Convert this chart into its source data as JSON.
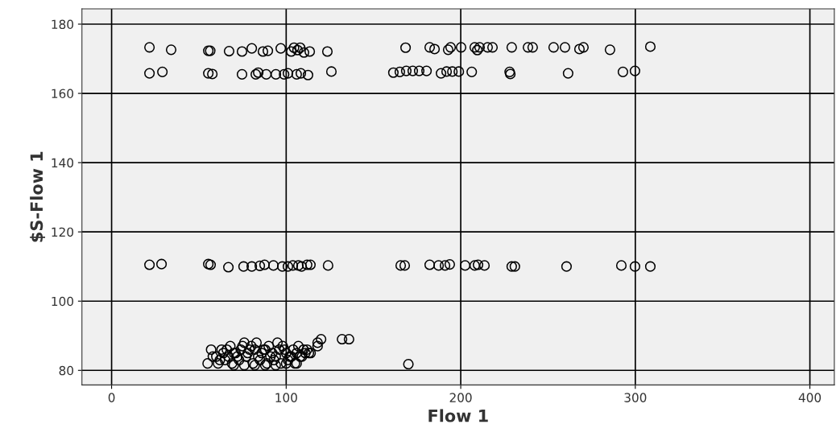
{
  "chart_data": {
    "type": "scatter",
    "xlabel": "Flow 1",
    "ylabel": "$S-Flow 1",
    "xlim": [
      -17,
      414
    ],
    "ylim": [
      75.8,
      184.4
    ],
    "xticks": [
      0,
      100,
      200,
      300,
      400
    ],
    "yticks": [
      80,
      100,
      120,
      140,
      160,
      180
    ],
    "grid": true,
    "marker": "circle",
    "series": [
      {
        "color": "#000000",
        "x": [
          21.7,
          34.1,
          55.4,
          56.5,
          67.3,
          74.7,
          80.3,
          86.7,
          89.5,
          96.9,
          102.9,
          104.5,
          106.5,
          108,
          110.2,
          113.5,
          123.6,
          168.4,
          182.2,
          185,
          192.8,
          194.2,
          200.2,
          208,
          209.5,
          210.8,
          215.4,
          218.2,
          229.2,
          238.5,
          241.2,
          253.2,
          259.7,
          268,
          270.3,
          285.5,
          308.6
        ],
        "values": [
          173.3,
          172.6,
          172.3,
          172.3,
          172.2,
          172.1,
          173,
          172.1,
          172.3,
          173,
          172.1,
          173.2,
          172.5,
          173.2,
          171.8,
          172.1,
          172.1,
          173.2,
          173.3,
          172.8,
          172.6,
          173.3,
          173.3,
          173.3,
          172.5,
          173.3,
          173.3,
          173.3,
          173.3,
          173.3,
          173.3,
          173.3,
          173.3,
          172.8,
          173.3,
          172.6,
          173.5
        ]
      },
      {
        "color": "#000000",
        "x": [
          21.7,
          29.1,
          55.4,
          57.7,
          74.7,
          82.6,
          84,
          88.6,
          94.1,
          98.8,
          101,
          106,
          108.4,
          112.5,
          125.9,
          161.4,
          165.1,
          168.8,
          172.5,
          176.2,
          180.4,
          188.7,
          191.9,
          195.2,
          198.9,
          206.3,
          228,
          228.4,
          261.5,
          292.9,
          299.8
        ],
        "values": [
          165.8,
          166.2,
          165.8,
          165.6,
          165.5,
          165.5,
          166,
          165.5,
          165.5,
          165.5,
          165.8,
          165.5,
          165.8,
          165.3,
          166.3,
          166,
          166.2,
          166.5,
          166.5,
          166.5,
          166.5,
          165.8,
          166.3,
          166.3,
          166.3,
          166.2,
          166.2,
          165.6,
          165.8,
          166.2,
          166.5
        ]
      },
      {
        "color": "#000000",
        "x": [
          21.7,
          28.6,
          55.4,
          56.7,
          66.9,
          75.6,
          80.3,
          84.9,
          87.6,
          92.7,
          97.8,
          101,
          103.8,
          107,
          108.8,
          112,
          113.9,
          124,
          165.6,
          167.9,
          182.2,
          187.3,
          191,
          193.7,
          202.5,
          208,
          209.9,
          213.6,
          229.2,
          231,
          260.6,
          292,
          299.8,
          308.6
        ],
        "values": [
          110.5,
          110.7,
          110.7,
          110.5,
          109.8,
          110,
          110,
          110.2,
          110.5,
          110.3,
          110,
          110,
          110.3,
          110.3,
          110,
          110.5,
          110.5,
          110.3,
          110.3,
          110.3,
          110.5,
          110.3,
          110.3,
          110.6,
          110.3,
          110.3,
          110.5,
          110.3,
          110,
          110,
          110,
          110.3,
          110,
          110
        ]
      },
      {
        "color": "#000000",
        "x": [
          55,
          57,
          60,
          62,
          64,
          66,
          68,
          70,
          72,
          74,
          76,
          78,
          80,
          82,
          84,
          86,
          88,
          90,
          92,
          94,
          96,
          98,
          100,
          102,
          104,
          106,
          108,
          110,
          112,
          114,
          118,
          120,
          58,
          61,
          65,
          69,
          73,
          77,
          81,
          85,
          89,
          93,
          97,
          101,
          105,
          109,
          113,
          63,
          67,
          71,
          75,
          79,
          83,
          87,
          91,
          95,
          99,
          103,
          107,
          111,
          70,
          76,
          82,
          88,
          94,
          100,
          106,
          118,
          132,
          136,
          170
        ],
        "values": [
          82,
          86,
          84,
          83,
          85,
          86,
          87,
          85,
          84,
          86,
          88,
          85,
          87,
          86,
          84,
          85,
          86,
          87,
          85,
          84,
          86,
          87,
          85,
          84,
          86,
          85,
          84,
          86,
          86,
          85,
          88,
          89,
          84,
          82,
          83,
          82,
          83,
          84,
          82,
          83,
          82,
          83,
          82,
          83,
          82,
          84,
          85,
          86,
          84,
          85,
          87,
          86,
          88,
          86,
          84,
          88,
          86,
          84,
          87,
          85,
          81.5,
          81.5,
          81.5,
          81.5,
          81.5,
          82,
          82,
          87,
          89,
          89,
          81.8
        ]
      }
    ]
  }
}
